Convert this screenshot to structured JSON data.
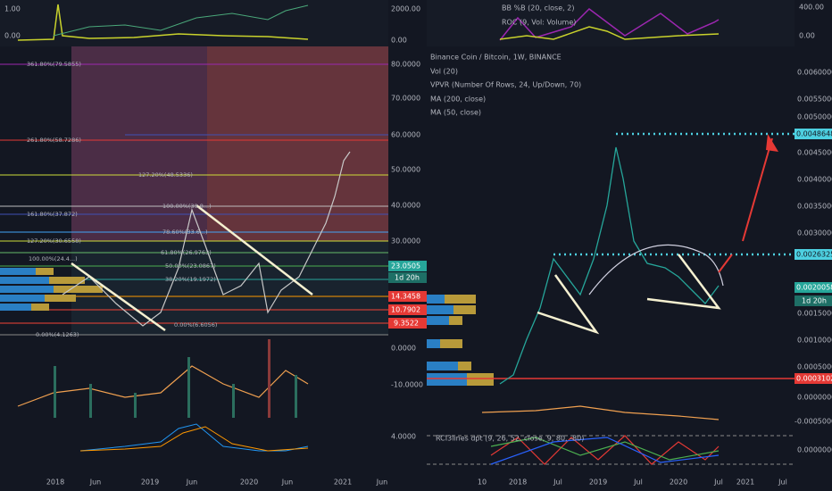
{
  "left": {
    "top_axis": {
      "left": [
        "1.00",
        "0.00"
      ],
      "right": [
        "2000.00",
        "0.00"
      ]
    },
    "price_axis": [
      "80.0000",
      "70.0000",
      "60.0000",
      "50.0000",
      "40.0000",
      "30.0000",
      "0.0000",
      "-10.0000",
      "4.0000"
    ],
    "badges": [
      "23.0505",
      "1d 20h",
      "14.3458",
      "10.7902",
      "9.3522"
    ],
    "fib_labels": [
      "361.80%(79.5855)",
      "261.80%(58.7286)",
      "127.20%(48.5336)",
      "100.00%(39.8...)",
      "161.80%(37.872)",
      "78.60%(33.6...)",
      "127.20%(30.6558)",
      "61.80%(26.9763)",
      "100.00%(24.4...)",
      "50.00%(23.0867)",
      "38.20%(19.1972)",
      "0.00%(6.6056)",
      "0.00%(4.1263)"
    ],
    "time_axis": [
      "2018",
      "Jun",
      "2019",
      "Jun",
      "2020",
      "Jun",
      "2021",
      "Jun"
    ]
  },
  "right": {
    "top_legend": [
      "BB %B (20, close, 2)",
      "ROC (9, Vol: Volume)"
    ],
    "top_axis": [
      "400.00",
      "0.00"
    ],
    "legend": [
      "Binance Coin / Bitcoin, 1W, BINANCE",
      "Vol (20)",
      "VPVR (Number Of Rows, 24, Up/Down, 70)",
      "MA (200, close)",
      "MA (50, close)"
    ],
    "price_axis": [
      "0.0060000",
      "0.0055000",
      "0.0050000",
      "0.0045000",
      "0.0040000",
      "0.0035000",
      "0.0030000",
      "0.0015000",
      "0.0010000",
      "0.0005000",
      "0.0000000",
      "-0.0005000"
    ],
    "badges": [
      "0.0048648",
      "0.0026325",
      "0.0020058",
      "1d 20h",
      "0.0003102"
    ],
    "lower_legend": "RCI3lines dpt (9, 26, 52, close, 9, 80, -80)",
    "lower_axis": "0.0000000",
    "time_axis": [
      "10",
      "2018",
      "Jul",
      "2019",
      "Jul",
      "2020",
      "Jul",
      "2021",
      "Jul"
    ]
  }
}
